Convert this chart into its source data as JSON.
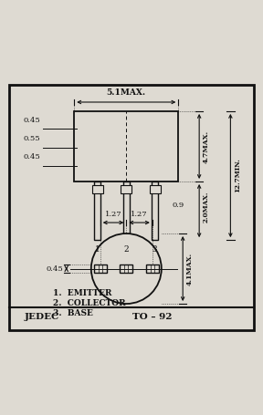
{
  "bg_color": "#dedad2",
  "border_color": "#111111",
  "line_color": "#111111",
  "text_color": "#111111",
  "figsize": [
    2.88,
    4.55
  ],
  "dpi": 100,
  "labels": {
    "jedec": "JEDEC",
    "package": "TO – 92",
    "pin1": "1.  EMITTER",
    "pin2": "2.  COLLECTOR",
    "pin3": "3.  BASE"
  }
}
